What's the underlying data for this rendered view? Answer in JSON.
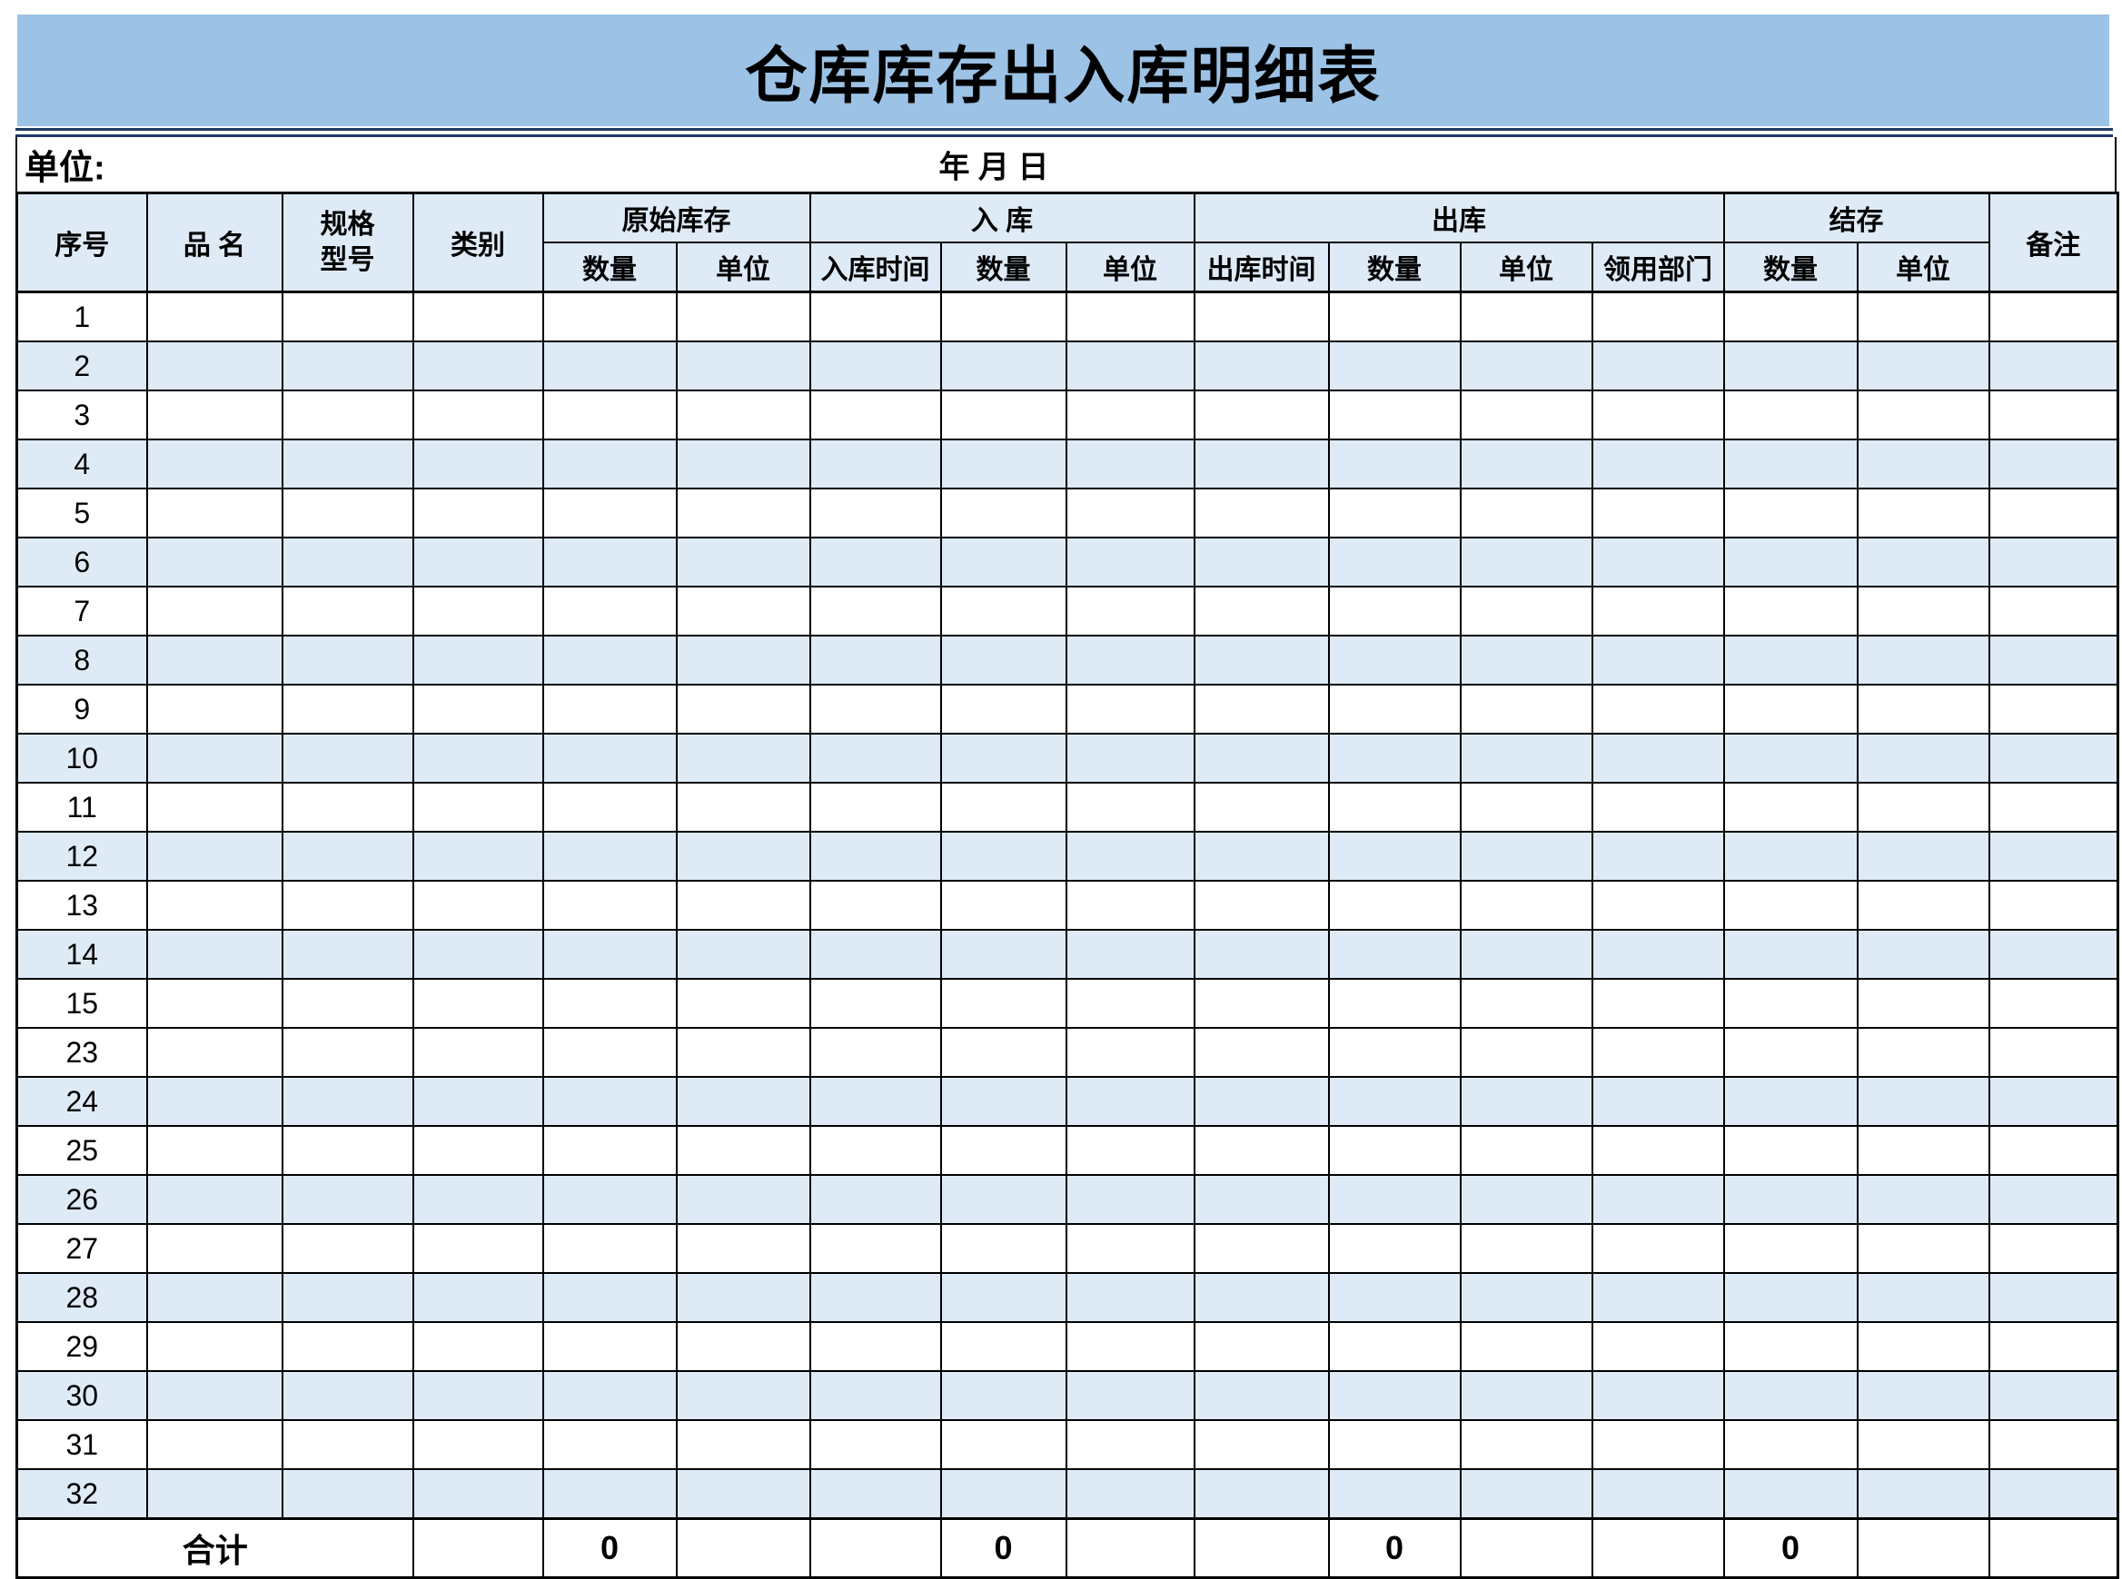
{
  "title": "仓库库存出入库明细表",
  "meta": {
    "unit_label": "单位:",
    "date_label": "年 月 日"
  },
  "header": {
    "serial": "序号",
    "product_name": "品 名",
    "spec_line1": "规格",
    "spec_line2": "型号",
    "category": "类别",
    "groups": {
      "original_stock": "原始库存",
      "inbound": "入 库",
      "outbound": "出库",
      "balance": "结存"
    },
    "sub": {
      "qty": "数量",
      "unit": "单位",
      "in_time": "入库时间",
      "out_time": "出库时间",
      "dept": "领用部门"
    },
    "remark": "备注"
  },
  "rows": [
    "1",
    "2",
    "3",
    "4",
    "5",
    "6",
    "7",
    "8",
    "9",
    "10",
    "11",
    "12",
    "13",
    "14",
    "15",
    "23",
    "24",
    "25",
    "26",
    "27",
    "28",
    "29",
    "30",
    "31",
    "32"
  ],
  "total": {
    "label": "合计",
    "original_qty": "0",
    "inbound_qty": "0",
    "outbound_qty": "0",
    "balance_qty": "0"
  },
  "colors": {
    "banner_blue": "#9CC2E5",
    "band_blue": "#DEEBF7",
    "divider_navy": "#1F3864"
  }
}
